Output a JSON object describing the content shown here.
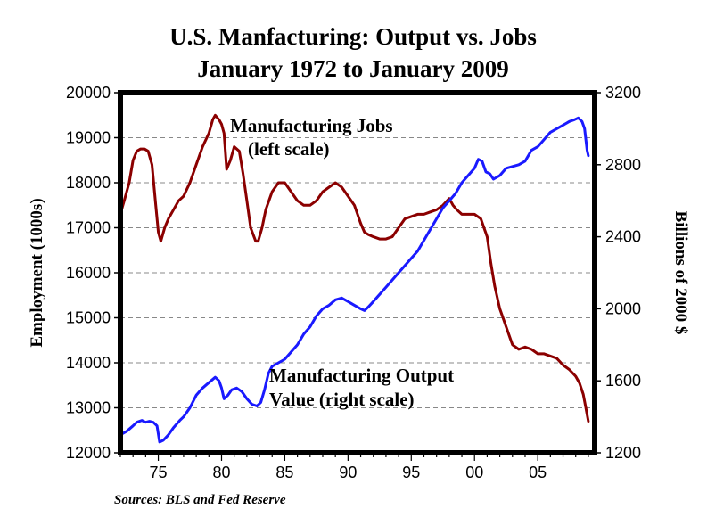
{
  "chart_data": {
    "type": "line",
    "title": [
      "U.S. Manfacturing: Output vs. Jobs",
      "January 1972 to January 2009"
    ],
    "x": {
      "range": [
        1972.0,
        2009.5
      ],
      "tick_values": [
        1975,
        1980,
        1985,
        1990,
        1995,
        2000,
        2005
      ],
      "tick_labels": [
        "75",
        "80",
        "85",
        "90",
        "95",
        "00",
        "05"
      ]
    },
    "y_left": {
      "label": "Employment (1000s)",
      "range": [
        12000,
        20000
      ],
      "tick_values": [
        12000,
        13000,
        14000,
        15000,
        16000,
        17000,
        18000,
        19000,
        20000
      ],
      "tick_labels": [
        "12000",
        "13000",
        "14000",
        "15000",
        "16000",
        "17000",
        "18000",
        "19000",
        "20000"
      ]
    },
    "y_right": {
      "label": "Billions of 2000 $",
      "range": [
        1200,
        3200
      ],
      "tick_values": [
        1200,
        1600,
        2000,
        2400,
        2800,
        3200
      ],
      "tick_labels": [
        "1200",
        "1600",
        "2000",
        "2400",
        "2800",
        "3200"
      ]
    },
    "grid": "horizontal-dashed",
    "series": [
      {
        "name": "Manufacturing Jobs",
        "axis": "left",
        "color": "#8b0000",
        "x": [
          1972.0,
          1972.3,
          1972.7,
          1973.0,
          1973.3,
          1973.6,
          1973.9,
          1974.2,
          1974.5,
          1974.8,
          1975.0,
          1975.2,
          1975.5,
          1975.8,
          1976.2,
          1976.6,
          1977.0,
          1977.5,
          1978.0,
          1978.5,
          1979.0,
          1979.3,
          1979.5,
          1979.8,
          1980.0,
          1980.2,
          1980.4,
          1980.7,
          1981.0,
          1981.4,
          1981.7,
          1982.0,
          1982.3,
          1982.7,
          1982.9,
          1983.2,
          1983.5,
          1984.0,
          1984.5,
          1985.0,
          1985.5,
          1986.0,
          1986.5,
          1987.0,
          1987.5,
          1988.0,
          1988.5,
          1989.0,
          1989.5,
          1990.0,
          1990.5,
          1991.0,
          1991.3,
          1991.6,
          1992.0,
          1992.5,
          1993.0,
          1993.5,
          1994.0,
          1994.5,
          1995.0,
          1995.5,
          1996.0,
          1996.5,
          1997.0,
          1997.5,
          1998.0,
          1998.3,
          1998.6,
          1999.0,
          1999.5,
          2000.0,
          2000.5,
          2001.0,
          2001.3,
          2001.6,
          2002.0,
          2002.5,
          2003.0,
          2003.5,
          2004.0,
          2004.5,
          2005.0,
          2005.5,
          2006.0,
          2006.5,
          2007.0,
          2007.5,
          2008.0,
          2008.3,
          2008.6,
          2008.8,
          2009.0
        ],
        "values": [
          17300,
          17600,
          18000,
          18500,
          18700,
          18750,
          18750,
          18700,
          18400,
          17500,
          16900,
          16700,
          17000,
          17200,
          17400,
          17600,
          17700,
          18000,
          18400,
          18800,
          19100,
          19400,
          19500,
          19400,
          19300,
          19100,
          18300,
          18500,
          18800,
          18700,
          18200,
          17600,
          17000,
          16700,
          16700,
          17000,
          17400,
          17800,
          18000,
          18000,
          17800,
          17600,
          17500,
          17500,
          17600,
          17800,
          17900,
          18000,
          17900,
          17700,
          17500,
          17100,
          16900,
          16850,
          16800,
          16750,
          16750,
          16800,
          17000,
          17200,
          17250,
          17300,
          17300,
          17350,
          17400,
          17500,
          17650,
          17500,
          17400,
          17300,
          17300,
          17300,
          17200,
          16800,
          16200,
          15700,
          15200,
          14800,
          14400,
          14300,
          14350,
          14300,
          14200,
          14200,
          14150,
          14100,
          13950,
          13850,
          13700,
          13550,
          13300,
          13000,
          12700
        ]
      },
      {
        "name": "Manufacturing Output Value",
        "axis": "right",
        "color": "#1a1aff",
        "x": [
          1972.0,
          1972.5,
          1973.0,
          1973.3,
          1973.7,
          1974.0,
          1974.3,
          1974.6,
          1974.9,
          1975.1,
          1975.4,
          1975.8,
          1976.2,
          1976.7,
          1977.0,
          1977.5,
          1978.0,
          1978.5,
          1979.0,
          1979.5,
          1979.8,
          1980.0,
          1980.2,
          1980.5,
          1980.8,
          1981.2,
          1981.6,
          1982.0,
          1982.4,
          1982.8,
          1983.1,
          1983.4,
          1983.7,
          1984.0,
          1984.5,
          1985.0,
          1985.5,
          1986.0,
          1986.5,
          1987.0,
          1987.5,
          1988.0,
          1988.5,
          1989.0,
          1989.5,
          1990.0,
          1990.5,
          1991.0,
          1991.3,
          1991.6,
          1992.0,
          1992.5,
          1993.0,
          1993.5,
          1994.0,
          1994.5,
          1995.0,
          1995.5,
          1996.0,
          1996.5,
          1997.0,
          1997.5,
          1998.0,
          1998.5,
          1999.0,
          1999.5,
          2000.0,
          2000.3,
          2000.6,
          2000.9,
          2001.2,
          2001.5,
          2002.0,
          2002.5,
          2003.0,
          2003.5,
          2004.0,
          2004.5,
          2005.0,
          2005.5,
          2006.0,
          2006.5,
          2007.0,
          2007.5,
          2007.9,
          2008.2,
          2008.5,
          2008.7,
          2008.9,
          2009.0
        ],
        "values": [
          1300,
          1320,
          1350,
          1370,
          1380,
          1370,
          1375,
          1370,
          1350,
          1260,
          1270,
          1300,
          1340,
          1380,
          1400,
          1450,
          1520,
          1560,
          1590,
          1620,
          1600,
          1560,
          1500,
          1520,
          1550,
          1560,
          1540,
          1500,
          1470,
          1460,
          1480,
          1550,
          1640,
          1680,
          1700,
          1720,
          1760,
          1800,
          1860,
          1900,
          1960,
          2000,
          2020,
          2050,
          2060,
          2040,
          2020,
          2000,
          1990,
          2010,
          2040,
          2080,
          2120,
          2160,
          2200,
          2240,
          2280,
          2320,
          2380,
          2440,
          2500,
          2560,
          2600,
          2640,
          2700,
          2740,
          2780,
          2830,
          2820,
          2760,
          2750,
          2720,
          2740,
          2780,
          2790,
          2800,
          2820,
          2880,
          2900,
          2940,
          2980,
          3000,
          3020,
          3040,
          3050,
          3060,
          3040,
          3000,
          2880,
          2850
        ]
      }
    ],
    "annotations": [
      {
        "text": [
          "Manufacturing Jobs",
          "(left scale)"
        ]
      },
      {
        "text": [
          "Manufacturing Output",
          "Value (right scale)"
        ]
      }
    ],
    "source": "Sources: BLS and Fed Reserve"
  }
}
